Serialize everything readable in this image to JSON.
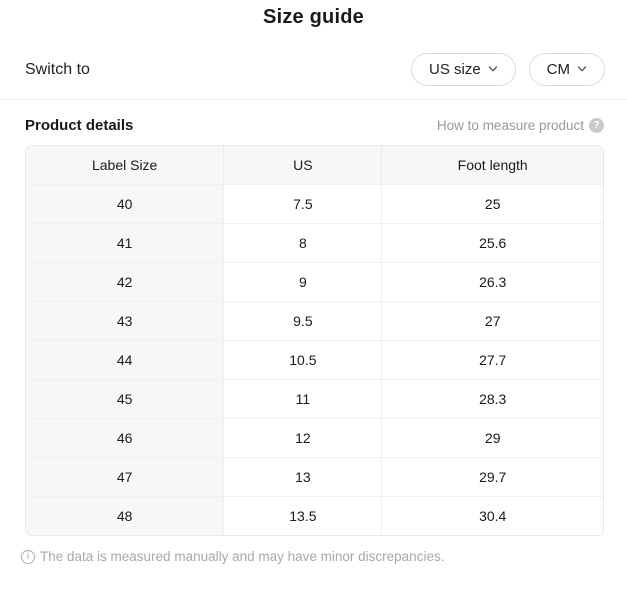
{
  "page": {
    "title": "Size guide"
  },
  "switch_row": {
    "label": "Switch to",
    "size_dropdown": {
      "value": "US size"
    },
    "unit_dropdown": {
      "value": "CM"
    }
  },
  "product_details": {
    "heading": "Product details",
    "measure_link_label": "How to measure product"
  },
  "size_table": {
    "columns": [
      "Label Size",
      "US",
      "Foot length"
    ],
    "rows": [
      [
        "40",
        "7.5",
        "25"
      ],
      [
        "41",
        "8",
        "25.6"
      ],
      [
        "42",
        "9",
        "26.3"
      ],
      [
        "43",
        "9.5",
        "27"
      ],
      [
        "44",
        "10.5",
        "27.7"
      ],
      [
        "45",
        "11",
        "28.3"
      ],
      [
        "46",
        "12",
        "29"
      ],
      [
        "47",
        "13",
        "29.7"
      ],
      [
        "48",
        "13.5",
        "30.4"
      ]
    ]
  },
  "footer": {
    "note": "The data is measured manually and may have minor discrepancies."
  },
  "icons": {
    "chevron_down": "chevron-down",
    "help": "?",
    "info": "i"
  },
  "colors": {
    "text_primary": "#1a1a1a",
    "text_muted": "#9a9a9a",
    "pill_border": "#dcdcdc",
    "table_header_bg": "#f7f7f7",
    "table_border": "#e9e9e9",
    "row_divider": "#f0f0f0"
  }
}
